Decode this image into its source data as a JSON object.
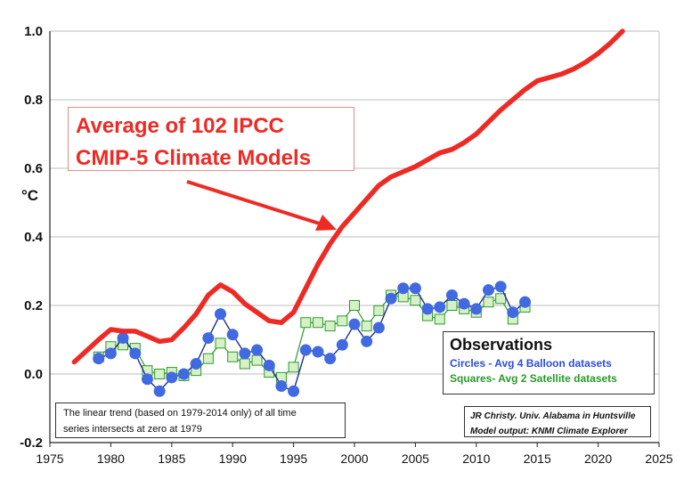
{
  "chart_data": {
    "type": "line",
    "ylabel": "°C",
    "xlim": [
      1975,
      2025
    ],
    "ylim": [
      -0.2,
      1.0
    ],
    "xticks": [
      1975,
      1980,
      1985,
      1990,
      1995,
      2000,
      2005,
      2010,
      2015,
      2020,
      2025
    ],
    "yticks": [
      "-0.2",
      "0.0",
      "0.2",
      "0.4",
      "0.6",
      "0.8",
      "1.0"
    ],
    "grid": true,
    "series": [
      {
        "name": "Average of 102 IPCC CMIP-5 Climate Models",
        "color": "#ee2a24",
        "x": [
          1977,
          1979,
          1980,
          1981,
          1982,
          1983,
          1984,
          1985,
          1986,
          1987,
          1988,
          1989,
          1990,
          1991,
          1992,
          1993,
          1994,
          1995,
          1996,
          1997,
          1998,
          1999,
          2000,
          2001,
          2002,
          2003,
          2004,
          2005,
          2006,
          2007,
          2008,
          2009,
          2010,
          2011,
          2012,
          2013,
          2014,
          2015,
          2016,
          2017,
          2018,
          2019,
          2020,
          2021,
          2022
        ],
        "y": [
          0.035,
          0.1,
          0.13,
          0.125,
          0.125,
          0.11,
          0.095,
          0.1,
          0.135,
          0.175,
          0.23,
          0.26,
          0.24,
          0.205,
          0.18,
          0.155,
          0.15,
          0.18,
          0.25,
          0.32,
          0.38,
          0.43,
          0.47,
          0.51,
          0.55,
          0.575,
          0.59,
          0.605,
          0.625,
          0.645,
          0.655,
          0.675,
          0.7,
          0.735,
          0.77,
          0.8,
          0.83,
          0.855,
          0.865,
          0.875,
          0.89,
          0.91,
          0.935,
          0.965,
          1.0
        ]
      },
      {
        "name": "Circles - Avg 4 Balloon datasets",
        "color": "#4169e1",
        "marker": "circle",
        "x": [
          1979,
          1980,
          1981,
          1982,
          1983,
          1984,
          1985,
          1986,
          1987,
          1988,
          1989,
          1990,
          1991,
          1992,
          1993,
          1994,
          1995,
          1996,
          1997,
          1998,
          1999,
          2000,
          2001,
          2002,
          2003,
          2004,
          2005,
          2006,
          2007,
          2008,
          2009,
          2010,
          2011,
          2012,
          2013,
          2014
        ],
        "y": [
          0.045,
          0.06,
          0.105,
          0.06,
          -0.015,
          -0.05,
          -0.01,
          0.0,
          0.03,
          0.105,
          0.175,
          0.115,
          0.06,
          0.07,
          0.025,
          -0.035,
          -0.05,
          0.07,
          0.065,
          0.045,
          0.085,
          0.145,
          0.095,
          0.135,
          0.22,
          0.25,
          0.25,
          0.19,
          0.195,
          0.23,
          0.205,
          0.19,
          0.245,
          0.255,
          0.18,
          0.21
        ]
      },
      {
        "name": "Squares- Avg 2 Satellite datasets",
        "color": "#2a9b2a",
        "marker": "square",
        "x": [
          1979,
          1980,
          1981,
          1982,
          1983,
          1984,
          1985,
          1986,
          1987,
          1988,
          1989,
          1990,
          1991,
          1992,
          1993,
          1994,
          1995,
          1996,
          1997,
          1998,
          1999,
          2000,
          2001,
          2002,
          2003,
          2004,
          2005,
          2006,
          2007,
          2008,
          2009,
          2010,
          2011,
          2012,
          2013,
          2014
        ],
        "y": [
          0.05,
          0.08,
          0.085,
          0.075,
          0.01,
          0.0,
          0.005,
          -0.005,
          0.01,
          0.045,
          0.09,
          0.05,
          0.03,
          0.04,
          0.005,
          -0.01,
          0.02,
          0.15,
          0.15,
          0.14,
          0.155,
          0.2,
          0.14,
          0.185,
          0.23,
          0.225,
          0.215,
          0.17,
          0.16,
          0.2,
          0.19,
          0.18,
          0.21,
          0.22,
          0.16,
          0.195
        ]
      }
    ]
  },
  "annotations": {
    "model_line1": "Average of 102 IPCC",
    "model_line2": "CMIP-5 Climate Models",
    "obs_title": "Observations",
    "obs_circles": "Circles - Avg 4 Balloon datasets",
    "obs_squares": "Squares- Avg 2 Satellite datasets",
    "trend_line1": "The linear trend (based on 1979-2014 only) of all time",
    "trend_line2": "series intersects at zero at 1979",
    "credit_line1": "JR Christy. Univ. Alabama in Huntsville",
    "credit_line2": "Model output: KNMI Climate Explorer"
  }
}
